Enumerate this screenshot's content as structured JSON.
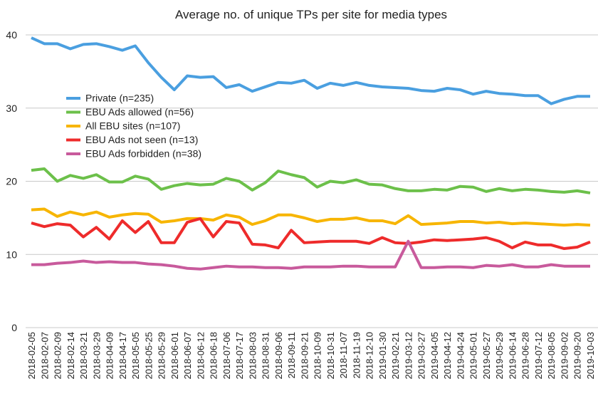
{
  "chart_data": {
    "type": "line",
    "title": "Average no. of unique TPs per site for media types",
    "categories": [
      "2018-02-05",
      "2018-02-07",
      "2018-02-09",
      "2018-02-14",
      "2018-03-21",
      "2018-03-29",
      "2018-04-09",
      "2018-04-17",
      "2018-05-05",
      "2018-05-25",
      "2018-05-29",
      "2018-06-01",
      "2018-06-07",
      "2018-06-12",
      "2018-06-18",
      "2018-07-06",
      "2018-07-17",
      "2018-08-03",
      "2018-08-31",
      "2018-09-06",
      "2018-09-11",
      "2018-09-21",
      "2018-10-09",
      "2018-10-31",
      "2018-11-07",
      "2018-11-19",
      "2018-12-10",
      "2019-01-30",
      "2019-02-21",
      "2019-03-12",
      "2019-03-27",
      "2019-04-05",
      "2019-04-12",
      "2019-04-24",
      "2019-05-01",
      "2019-05-27",
      "2019-05-29",
      "2019-06-14",
      "2019-06-28",
      "2019-07-12",
      "2019-08-05",
      "2019-09-02",
      "2019-09-20",
      "2019-10-03"
    ],
    "series": [
      {
        "name": "Private (n=235)",
        "color": "#4a9fe0",
        "values": [
          39.6,
          38.8,
          38.8,
          38.1,
          38.7,
          38.8,
          38.4,
          37.9,
          38.5,
          36.2,
          34.2,
          32.5,
          34.4,
          34.2,
          34.3,
          32.8,
          33.2,
          32.3,
          32.9,
          33.5,
          33.4,
          33.8,
          32.7,
          33.4,
          33.1,
          33.5,
          33.1,
          32.9,
          32.8,
          32.7,
          32.4,
          32.3,
          32.7,
          32.5,
          31.9,
          32.3,
          32.0,
          31.9,
          31.7,
          31.7,
          30.6,
          31.2,
          31.6,
          31.6
        ]
      },
      {
        "name": "EBU Ads allowed (n=56)",
        "color": "#6cc04a",
        "values": [
          21.5,
          21.7,
          20.0,
          20.8,
          20.4,
          20.9,
          19.9,
          19.9,
          20.7,
          20.3,
          18.9,
          19.4,
          19.7,
          19.5,
          19.6,
          20.4,
          20.0,
          18.8,
          19.8,
          21.4,
          20.9,
          20.5,
          19.2,
          20.0,
          19.8,
          20.2,
          19.6,
          19.5,
          19.0,
          18.7,
          18.7,
          18.9,
          18.8,
          19.3,
          19.2,
          18.6,
          19.0,
          18.7,
          18.9,
          18.8,
          18.6,
          18.5,
          18.7,
          18.4
        ]
      },
      {
        "name": "All EBU sites (n=107)",
        "color": "#f7b500",
        "values": [
          16.1,
          16.2,
          15.2,
          15.8,
          15.4,
          15.8,
          15.1,
          15.4,
          15.6,
          15.5,
          14.4,
          14.6,
          14.9,
          14.9,
          14.7,
          15.4,
          15.1,
          14.1,
          14.6,
          15.4,
          15.4,
          15.0,
          14.5,
          14.8,
          14.8,
          15.0,
          14.6,
          14.6,
          14.2,
          15.3,
          14.1,
          14.2,
          14.3,
          14.5,
          14.5,
          14.3,
          14.4,
          14.2,
          14.3,
          14.2,
          14.1,
          14.0,
          14.1,
          14.0
        ]
      },
      {
        "name": "EBU Ads not seen (n=13)",
        "color": "#ee2b2b",
        "values": [
          14.3,
          13.8,
          14.2,
          14.0,
          12.4,
          13.7,
          12.1,
          14.6,
          13.0,
          14.5,
          11.6,
          11.6,
          14.4,
          14.9,
          12.4,
          14.5,
          14.3,
          11.4,
          11.3,
          10.9,
          13.3,
          11.6,
          11.7,
          11.8,
          11.8,
          11.8,
          11.5,
          12.3,
          11.6,
          11.5,
          11.7,
          12.0,
          11.9,
          12.0,
          12.1,
          12.3,
          11.8,
          10.9,
          11.7,
          11.3,
          11.3,
          10.8,
          11.0,
          11.7
        ]
      },
      {
        "name": "EBU Ads forbidden (n=38)",
        "color": "#c85a9c",
        "values": [
          8.6,
          8.6,
          8.8,
          8.9,
          9.1,
          8.9,
          9.0,
          8.9,
          8.9,
          8.7,
          8.6,
          8.4,
          8.1,
          8.0,
          8.2,
          8.4,
          8.3,
          8.3,
          8.2,
          8.2,
          8.1,
          8.3,
          8.3,
          8.3,
          8.4,
          8.4,
          8.3,
          8.3,
          8.3,
          11.8,
          8.2,
          8.2,
          8.3,
          8.3,
          8.2,
          8.5,
          8.4,
          8.6,
          8.3,
          8.3,
          8.6,
          8.4,
          8.4,
          8.4
        ]
      }
    ],
    "ylim": [
      0,
      40
    ],
    "yticks": [
      0,
      10,
      20,
      30,
      40
    ],
    "grid": true,
    "legend": "upper left"
  }
}
